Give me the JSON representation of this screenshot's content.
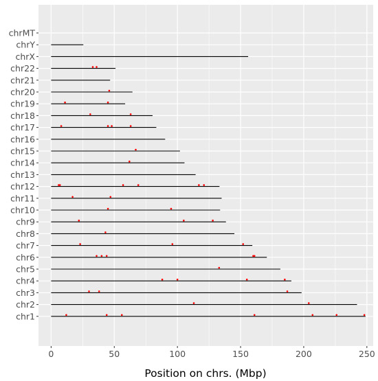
{
  "chart_data": {
    "type": "scatter",
    "title": "",
    "xlabel": "Position on chrs. (Mbp)",
    "ylabel": "",
    "xlim": [
      -10,
      255
    ],
    "x_ticks": [
      0,
      50,
      100,
      150,
      200,
      250
    ],
    "x_tick_labels": [
      "0",
      "50",
      "100",
      "150",
      "200",
      "250"
    ],
    "grid": true,
    "legend": "none",
    "colors": {
      "panel": "#ebebeb",
      "grid": "#ffffff",
      "segment": "#000000",
      "point": "#ff0000"
    },
    "chromosomes": [
      {
        "name": "chrMT",
        "length": 0.0166
      },
      {
        "name": "chrY",
        "length": 25.5
      },
      {
        "name": "chrX",
        "length": 156
      },
      {
        "name": "chr22",
        "length": 51
      },
      {
        "name": "chr21",
        "length": 46.7
      },
      {
        "name": "chr20",
        "length": 64.4
      },
      {
        "name": "chr19",
        "length": 58.6
      },
      {
        "name": "chr18",
        "length": 80.3
      },
      {
        "name": "chr17",
        "length": 83.3
      },
      {
        "name": "chr16",
        "length": 90.3
      },
      {
        "name": "chr15",
        "length": 102
      },
      {
        "name": "chr14",
        "length": 105.6
      },
      {
        "name": "chr13",
        "length": 114.4
      },
      {
        "name": "chr12",
        "length": 133.3
      },
      {
        "name": "chr11",
        "length": 135
      },
      {
        "name": "chr10",
        "length": 133.8
      },
      {
        "name": "chr9",
        "length": 138.4
      },
      {
        "name": "chr8",
        "length": 145.1
      },
      {
        "name": "chr7",
        "length": 159.3
      },
      {
        "name": "chr6",
        "length": 170.8
      },
      {
        "name": "chr5",
        "length": 181.5
      },
      {
        "name": "chr4",
        "length": 190.2
      },
      {
        "name": "chr3",
        "length": 198.3
      },
      {
        "name": "chr2",
        "length": 242.2
      },
      {
        "name": "chr1",
        "length": 248.9
      }
    ],
    "points": [
      {
        "chr": "chr22",
        "x": 33
      },
      {
        "chr": "chr22",
        "x": 36
      },
      {
        "chr": "chr20",
        "x": 46
      },
      {
        "chr": "chr19",
        "x": 11
      },
      {
        "chr": "chr19",
        "x": 45
      },
      {
        "chr": "chr18",
        "x": 31
      },
      {
        "chr": "chr18",
        "x": 63
      },
      {
        "chr": "chr17",
        "x": 8
      },
      {
        "chr": "chr17",
        "x": 45
      },
      {
        "chr": "chr17",
        "x": 48
      },
      {
        "chr": "chr17",
        "x": 63
      },
      {
        "chr": "chr15",
        "x": 67
      },
      {
        "chr": "chr14",
        "x": 62
      },
      {
        "chr": "chr12",
        "x": 6
      },
      {
        "chr": "chr12",
        "x": 7
      },
      {
        "chr": "chr12",
        "x": 57
      },
      {
        "chr": "chr12",
        "x": 69
      },
      {
        "chr": "chr12",
        "x": 117
      },
      {
        "chr": "chr12",
        "x": 121
      },
      {
        "chr": "chr11",
        "x": 17
      },
      {
        "chr": "chr11",
        "x": 47
      },
      {
        "chr": "chr10",
        "x": 45
      },
      {
        "chr": "chr10",
        "x": 95
      },
      {
        "chr": "chr9",
        "x": 22
      },
      {
        "chr": "chr9",
        "x": 105
      },
      {
        "chr": "chr9",
        "x": 128
      },
      {
        "chr": "chr8",
        "x": 43
      },
      {
        "chr": "chr7",
        "x": 23
      },
      {
        "chr": "chr7",
        "x": 96
      },
      {
        "chr": "chr7",
        "x": 152
      },
      {
        "chr": "chr6",
        "x": 36
      },
      {
        "chr": "chr6",
        "x": 40
      },
      {
        "chr": "chr6",
        "x": 44
      },
      {
        "chr": "chr6",
        "x": 160
      },
      {
        "chr": "chr6",
        "x": 161
      },
      {
        "chr": "chr5",
        "x": 133
      },
      {
        "chr": "chr4",
        "x": 88
      },
      {
        "chr": "chr4",
        "x": 100
      },
      {
        "chr": "chr4",
        "x": 155
      },
      {
        "chr": "chr4",
        "x": 185
      },
      {
        "chr": "chr3",
        "x": 30
      },
      {
        "chr": "chr3",
        "x": 38
      },
      {
        "chr": "chr3",
        "x": 187
      },
      {
        "chr": "chr2",
        "x": 113
      },
      {
        "chr": "chr2",
        "x": 204
      },
      {
        "chr": "chr1",
        "x": 12
      },
      {
        "chr": "chr1",
        "x": 44
      },
      {
        "chr": "chr1",
        "x": 56
      },
      {
        "chr": "chr1",
        "x": 161
      },
      {
        "chr": "chr1",
        "x": 207
      },
      {
        "chr": "chr1",
        "x": 226
      },
      {
        "chr": "chr1",
        "x": 248
      }
    ]
  }
}
